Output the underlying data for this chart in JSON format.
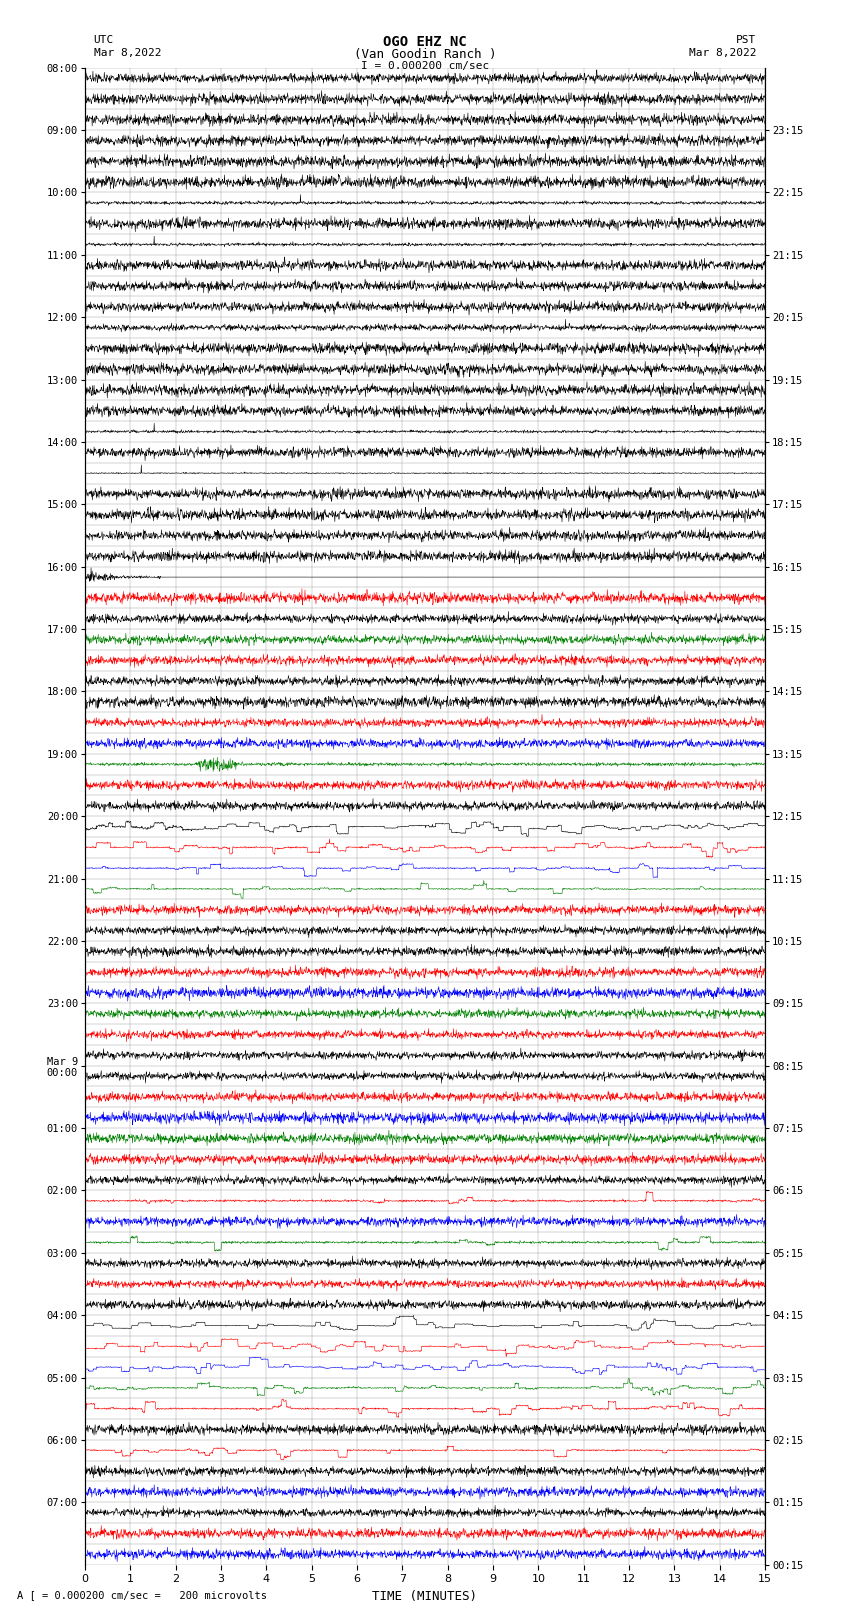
{
  "title_line1": "OGO EHZ NC",
  "title_line2": "(Van Goodin Ranch )",
  "title_line3": "I = 0.000200 cm/sec",
  "left_label_top": "UTC",
  "left_label_date": "Mar 8,2022",
  "right_label_top": "PST",
  "right_label_date": "Mar 8,2022",
  "bottom_label": "TIME (MINUTES)",
  "bottom_note": "A [ = 0.000200 cm/sec =   200 microvolts",
  "utc_times": [
    "08:00",
    "",
    "",
    "09:00",
    "",
    "",
    "10:00",
    "",
    "",
    "11:00",
    "",
    "",
    "12:00",
    "",
    "",
    "13:00",
    "",
    "",
    "14:00",
    "",
    "",
    "15:00",
    "",
    "",
    "16:00",
    "",
    "",
    "17:00",
    "",
    "",
    "18:00",
    "",
    "",
    "19:00",
    "",
    "",
    "20:00",
    "",
    "",
    "21:00",
    "",
    "",
    "22:00",
    "",
    "",
    "23:00",
    "",
    "",
    "Mar 9\n00:00",
    "",
    "",
    "01:00",
    "",
    "",
    "02:00",
    "",
    "",
    "03:00",
    "",
    "",
    "04:00",
    "",
    "",
    "05:00",
    "",
    "",
    "06:00",
    "",
    "",
    "07:00",
    "",
    ""
  ],
  "pst_times": [
    "00:15",
    "",
    "",
    "01:15",
    "",
    "",
    "02:15",
    "",
    "",
    "03:15",
    "",
    "",
    "04:15",
    "",
    "",
    "05:15",
    "",
    "",
    "06:15",
    "",
    "",
    "07:15",
    "",
    "",
    "08:15",
    "",
    "",
    "09:15",
    "",
    "",
    "10:15",
    "",
    "",
    "11:15",
    "",
    "",
    "12:15",
    "",
    "",
    "13:15",
    "",
    "",
    "14:15",
    "",
    "",
    "15:15",
    "",
    "",
    "16:15",
    "",
    "",
    "17:15",
    "",
    "",
    "18:15",
    "",
    "",
    "19:15",
    "",
    "",
    "20:15",
    "",
    "",
    "21:15",
    "",
    "",
    "22:15",
    "",
    "",
    "23:15",
    "",
    ""
  ],
  "num_rows": 72,
  "time_min": 0,
  "time_max": 15,
  "background_color": "#ffffff"
}
